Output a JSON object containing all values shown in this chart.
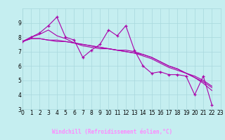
{
  "background_color": "#c5eef0",
  "grid_color": "#a8d8dc",
  "line_color": "#aa00aa",
  "xlabel": "Windchill (Refroidissement éolien,°C)",
  "xlabel_bg": "#330066",
  "xlabel_fg": "#ff88ff",
  "xlim": [
    0,
    23
  ],
  "ylim": [
    3,
    10
  ],
  "yticks": [
    3,
    4,
    5,
    6,
    7,
    8,
    9
  ],
  "xticks": [
    0,
    1,
    2,
    3,
    4,
    5,
    6,
    7,
    8,
    9,
    10,
    11,
    12,
    13,
    14,
    15,
    16,
    17,
    18,
    19,
    20,
    21,
    22,
    23
  ],
  "tick_fontsize": 5.5,
  "s1": [
    7.7,
    8.0,
    8.3,
    8.8,
    9.4,
    8.0,
    7.8,
    6.6,
    7.1,
    7.5,
    8.5,
    8.1,
    8.8,
    7.1,
    6.0,
    5.5,
    5.6,
    5.4,
    5.4,
    5.3,
    4.0,
    5.3,
    3.3
  ],
  "s2": [
    7.7,
    8.0,
    8.2,
    8.5,
    8.1,
    7.9,
    7.6,
    7.4,
    7.3,
    7.2,
    7.2,
    7.1,
    7.1,
    7.0,
    6.8,
    6.6,
    6.3,
    6.0,
    5.8,
    5.5,
    5.2,
    4.8,
    4.3
  ],
  "s3": [
    7.7,
    7.9,
    7.9,
    7.8,
    7.8,
    7.7,
    7.6,
    7.5,
    7.4,
    7.3,
    7.2,
    7.1,
    7.0,
    6.9,
    6.7,
    6.5,
    6.2,
    5.9,
    5.7,
    5.5,
    5.2,
    4.9,
    4.5
  ],
  "s4": [
    7.7,
    7.9,
    7.9,
    7.8,
    7.7,
    7.7,
    7.6,
    7.5,
    7.4,
    7.3,
    7.2,
    7.1,
    7.0,
    6.9,
    6.8,
    6.6,
    6.3,
    6.0,
    5.8,
    5.5,
    5.3,
    5.0,
    4.6
  ]
}
